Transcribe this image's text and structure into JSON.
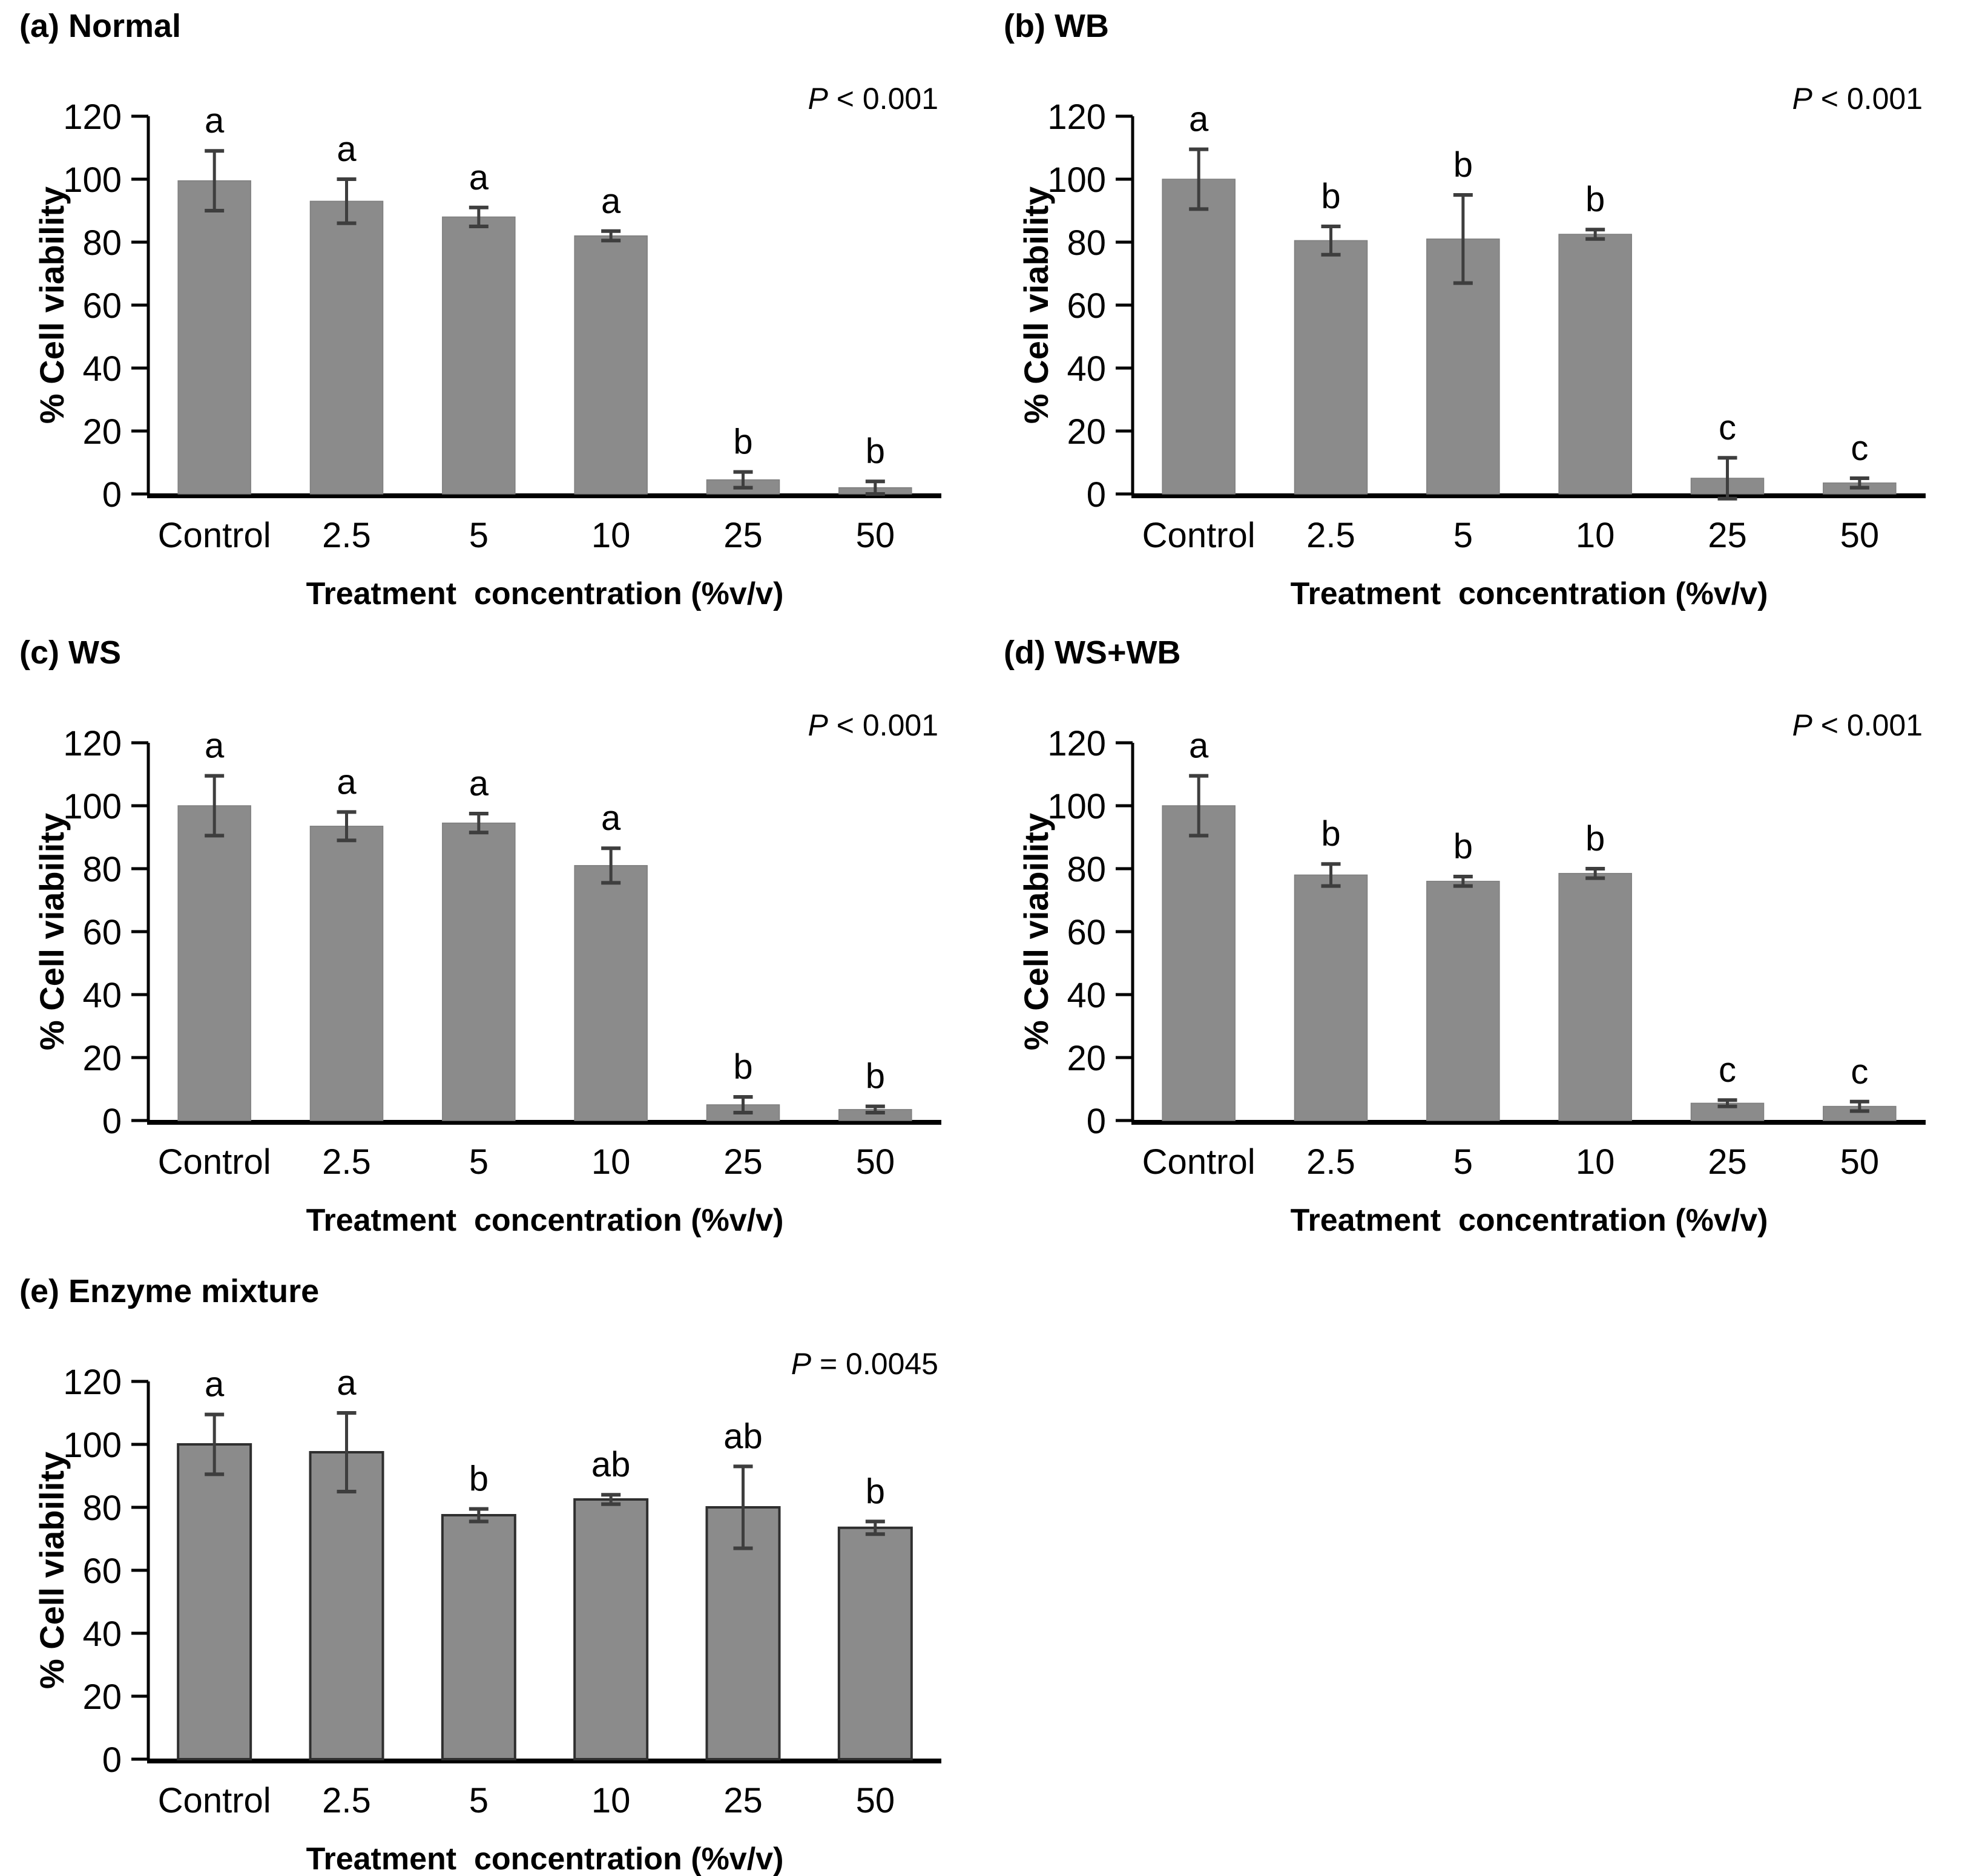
{
  "figure": {
    "background": "#ffffff",
    "bar_fill": "#8B8B8B",
    "bar_stroke_subtle": "#7E7E7E",
    "bar_stroke_dark": "#2F2F2F",
    "error_bar_color": "#3E3E3E",
    "axis_color": "#000000",
    "text_color": "#000000"
  },
  "shared": {
    "xlabel": "Treatment  concentration (%v/v)",
    "ylabel": "% Cell viability",
    "categories": [
      "Control",
      "2.5",
      "5",
      "10",
      "25",
      "50"
    ],
    "yticks": [
      0,
      20,
      40,
      60,
      80,
      100,
      120
    ],
    "ylim": [
      0,
      120
    ],
    "grid": false,
    "legend": "none"
  },
  "chart_data": [
    {
      "id": "a",
      "type": "bar",
      "title": "(a) Normal",
      "p_symbol": "P",
      "p_rest": " < 0.001",
      "xlabel": "Treatment  concentration (%v/v)",
      "ylabel": "% Cell viability",
      "ylim": [
        0,
        120
      ],
      "yticks": [
        0,
        20,
        40,
        60,
        80,
        100,
        120
      ],
      "categories": [
        "Control",
        "2.5",
        "5",
        "10",
        "25",
        "50"
      ],
      "values": [
        99.5,
        93,
        88,
        82,
        4.5,
        2
      ],
      "errors": [
        9.5,
        7,
        3,
        1.5,
        2.5,
        2
      ],
      "letters": [
        "a",
        "a",
        "a",
        "a",
        "b",
        "b"
      ],
      "bar_outline": false
    },
    {
      "id": "b",
      "type": "bar",
      "title": "(b) WB",
      "p_symbol": "P",
      "p_rest": " < 0.001",
      "xlabel": "Treatment  concentration (%v/v)",
      "ylabel": "% Cell viability",
      "ylim": [
        0,
        120
      ],
      "yticks": [
        0,
        20,
        40,
        60,
        80,
        100,
        120
      ],
      "categories": [
        "Control",
        "2.5",
        "5",
        "10",
        "25",
        "50"
      ],
      "values": [
        100,
        80.5,
        81,
        82.5,
        5,
        3.5
      ],
      "errors": [
        9.5,
        4.5,
        14,
        1.5,
        6.5,
        1.5
      ],
      "letters": [
        "a",
        "b",
        "b",
        "b",
        "c",
        "c"
      ],
      "bar_outline": false
    },
    {
      "id": "c",
      "type": "bar",
      "title": "(c) WS",
      "p_symbol": "P",
      "p_rest": " < 0.001",
      "xlabel": "Treatment  concentration (%v/v)",
      "ylabel": "% Cell viability",
      "ylim": [
        0,
        120
      ],
      "yticks": [
        0,
        20,
        40,
        60,
        80,
        100,
        120
      ],
      "categories": [
        "Control",
        "2.5",
        "5",
        "10",
        "25",
        "50"
      ],
      "values": [
        100,
        93.5,
        94.5,
        81,
        5,
        3.5
      ],
      "errors": [
        9.5,
        4.5,
        3,
        5.5,
        2.5,
        1
      ],
      "letters": [
        "a",
        "a",
        "a",
        "a",
        "b",
        "b"
      ],
      "bar_outline": false
    },
    {
      "id": "d",
      "type": "bar",
      "title": "(d) WS+WB",
      "p_symbol": "P",
      "p_rest": " < 0.001",
      "xlabel": "Treatment  concentration (%v/v)",
      "ylabel": "% Cell viability",
      "ylim": [
        0,
        120
      ],
      "yticks": [
        0,
        20,
        40,
        60,
        80,
        100,
        120
      ],
      "categories": [
        "Control",
        "2.5",
        "5",
        "10",
        "25",
        "50"
      ],
      "values": [
        100,
        78,
        76,
        78.5,
        5.5,
        4.5
      ],
      "errors": [
        9.5,
        3.5,
        1.5,
        1.5,
        1,
        1.5
      ],
      "letters": [
        "a",
        "b",
        "b",
        "b",
        "c",
        "c"
      ],
      "bar_outline": false
    },
    {
      "id": "e",
      "type": "bar",
      "title": "(e) Enzyme mixture",
      "p_symbol": "P",
      "p_rest": " = 0.0045",
      "xlabel": "Treatment  concentration (%v/v)",
      "ylabel": "% Cell viability",
      "ylim": [
        0,
        120
      ],
      "yticks": [
        0,
        20,
        40,
        60,
        80,
        100,
        120
      ],
      "categories": [
        "Control",
        "2.5",
        "5",
        "10",
        "25",
        "50"
      ],
      "values": [
        100,
        97.5,
        77.5,
        82.5,
        80,
        73.5
      ],
      "errors": [
        9.5,
        12.5,
        2,
        1.5,
        13,
        2
      ],
      "letters": [
        "a",
        "a",
        "b",
        "ab",
        "ab",
        "b"
      ],
      "bar_outline": true
    }
  ]
}
